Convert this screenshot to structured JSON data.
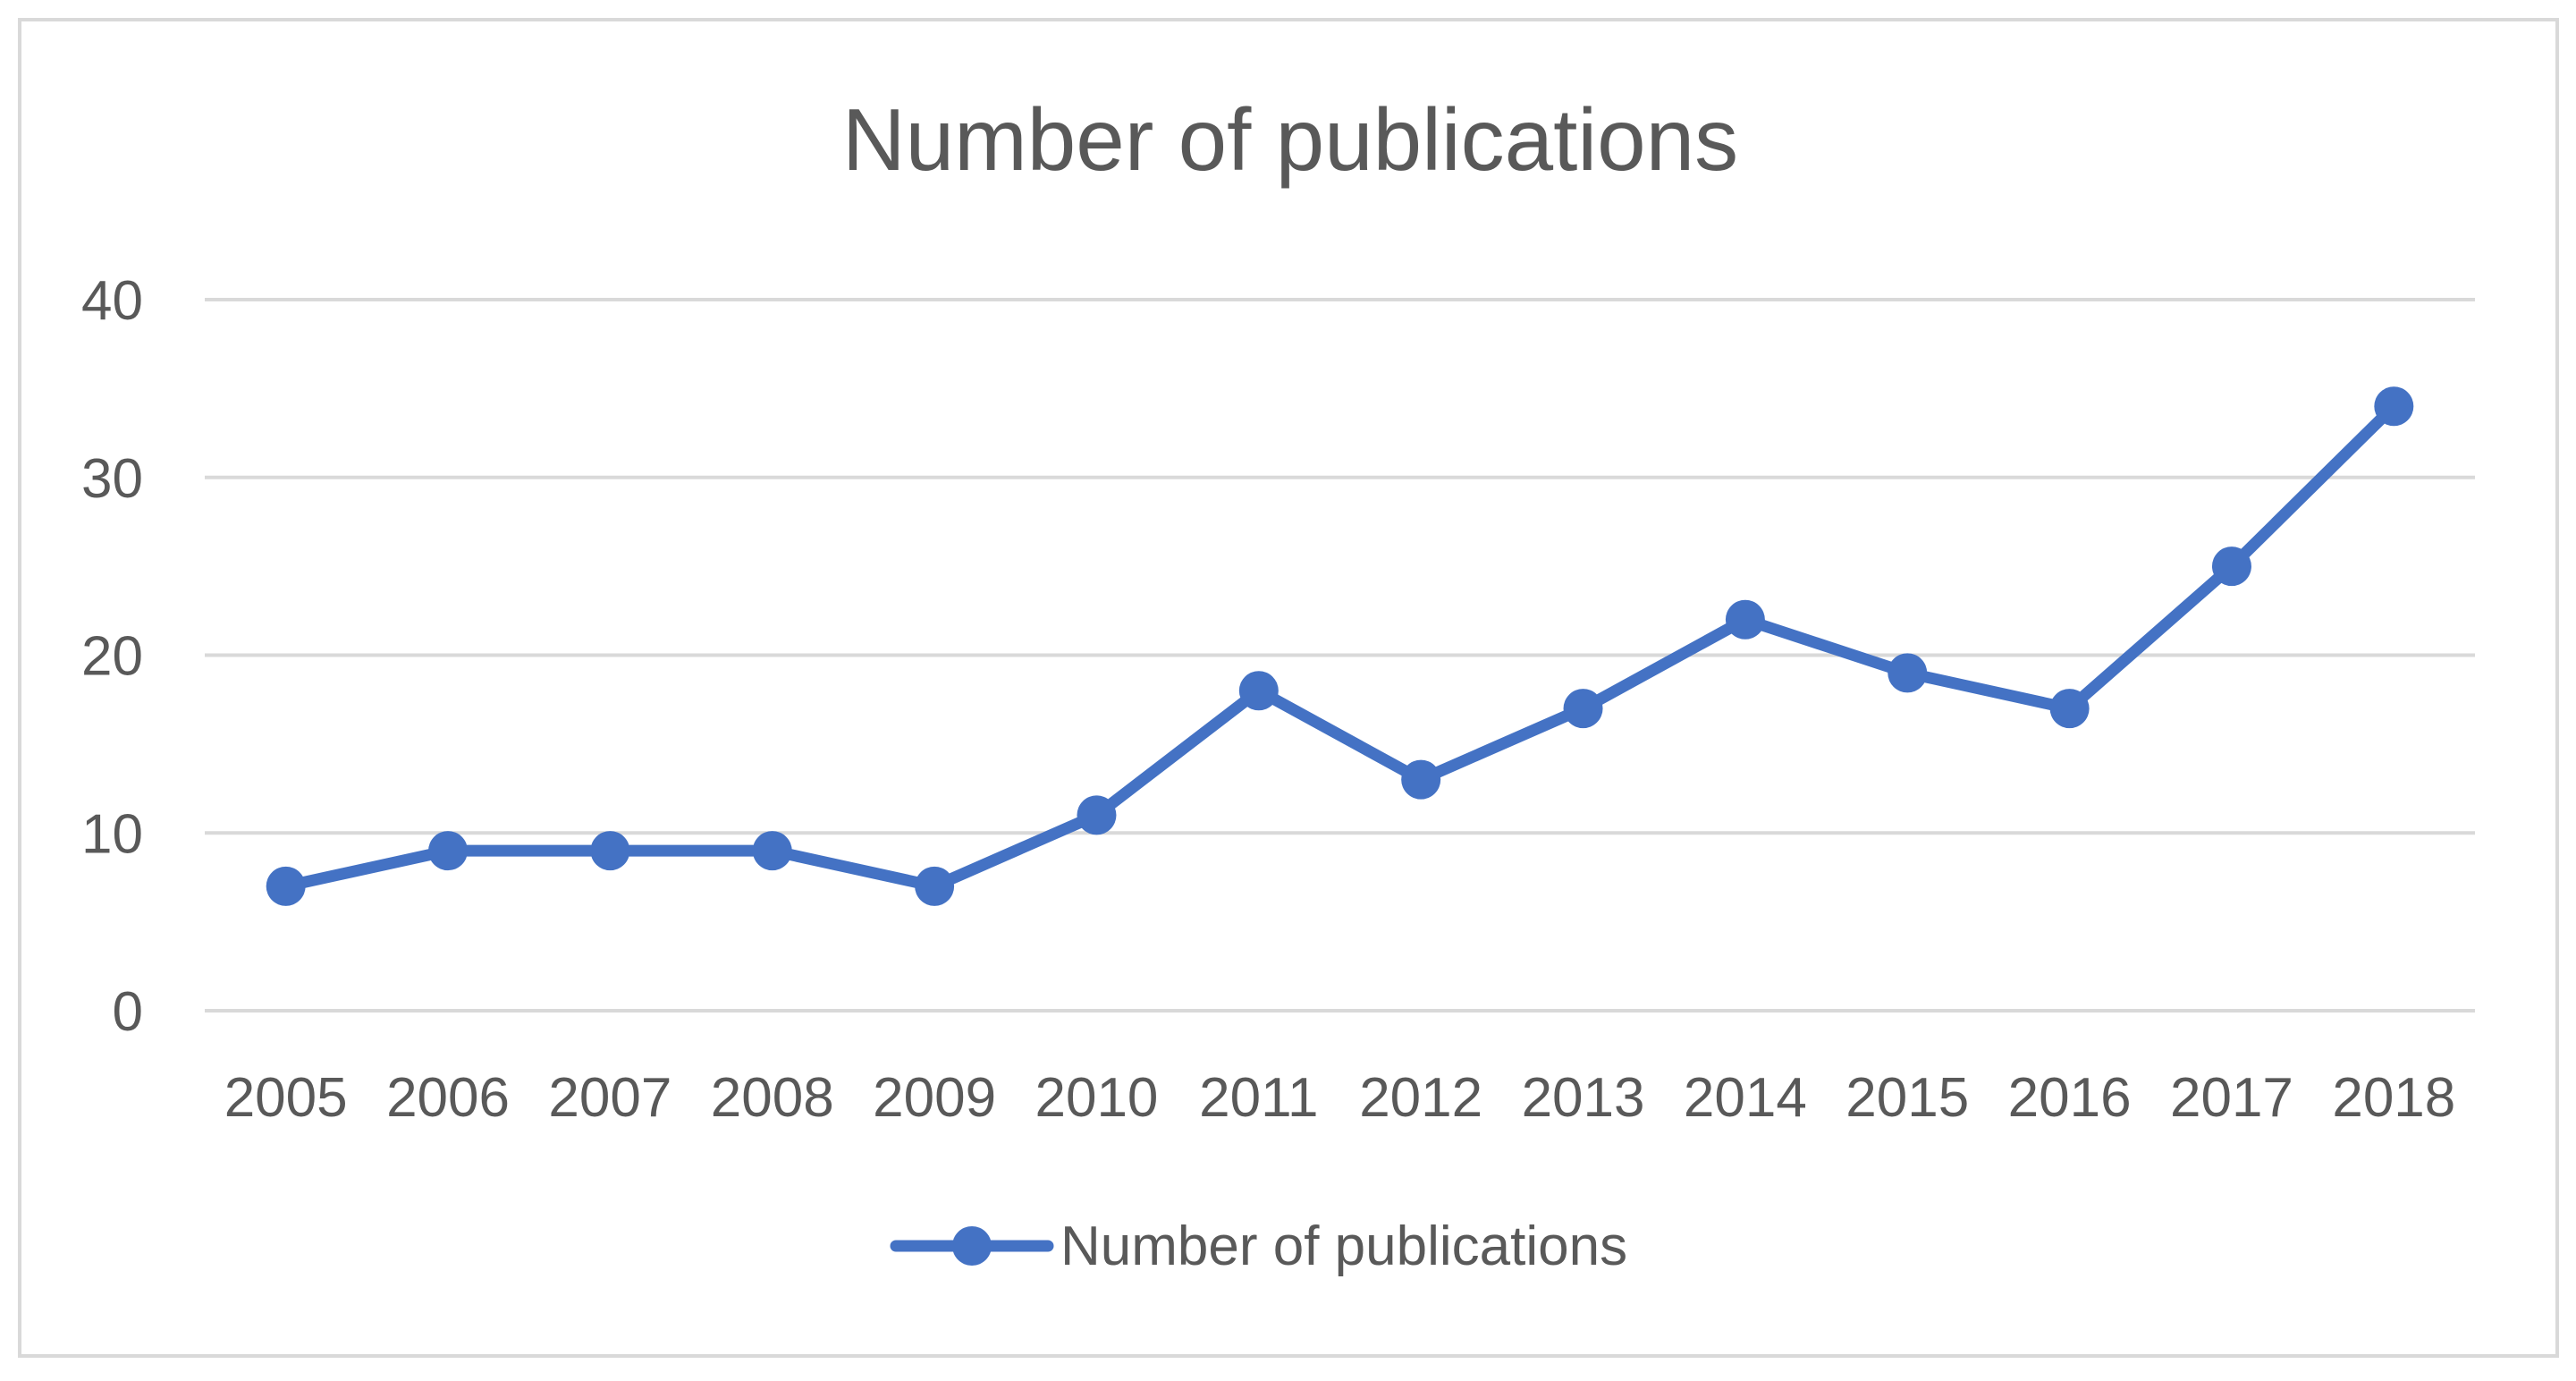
{
  "chart_data": {
    "type": "line",
    "title": "Number of publications",
    "xlabel": "",
    "ylabel": "",
    "categories": [
      "2005",
      "2006",
      "2007",
      "2008",
      "2009",
      "2010",
      "2011",
      "2012",
      "2013",
      "2014",
      "2015",
      "2016",
      "2017",
      "2018"
    ],
    "series": [
      {
        "name": "Number of publications",
        "values": [
          7,
          9,
          9,
          9,
          7,
          11,
          18,
          13,
          17,
          22,
          19,
          17,
          25,
          34
        ]
      }
    ],
    "ylim": [
      0,
      40
    ],
    "yticks": [
      "0",
      "10",
      "20",
      "30",
      "40"
    ],
    "grid": "horizontal",
    "legend": "bottom",
    "colors": {
      "series": "#4472C4",
      "grid": "#D9D9D9",
      "text": "#595959",
      "border": "#D9D9D9"
    },
    "marker": "circle"
  }
}
